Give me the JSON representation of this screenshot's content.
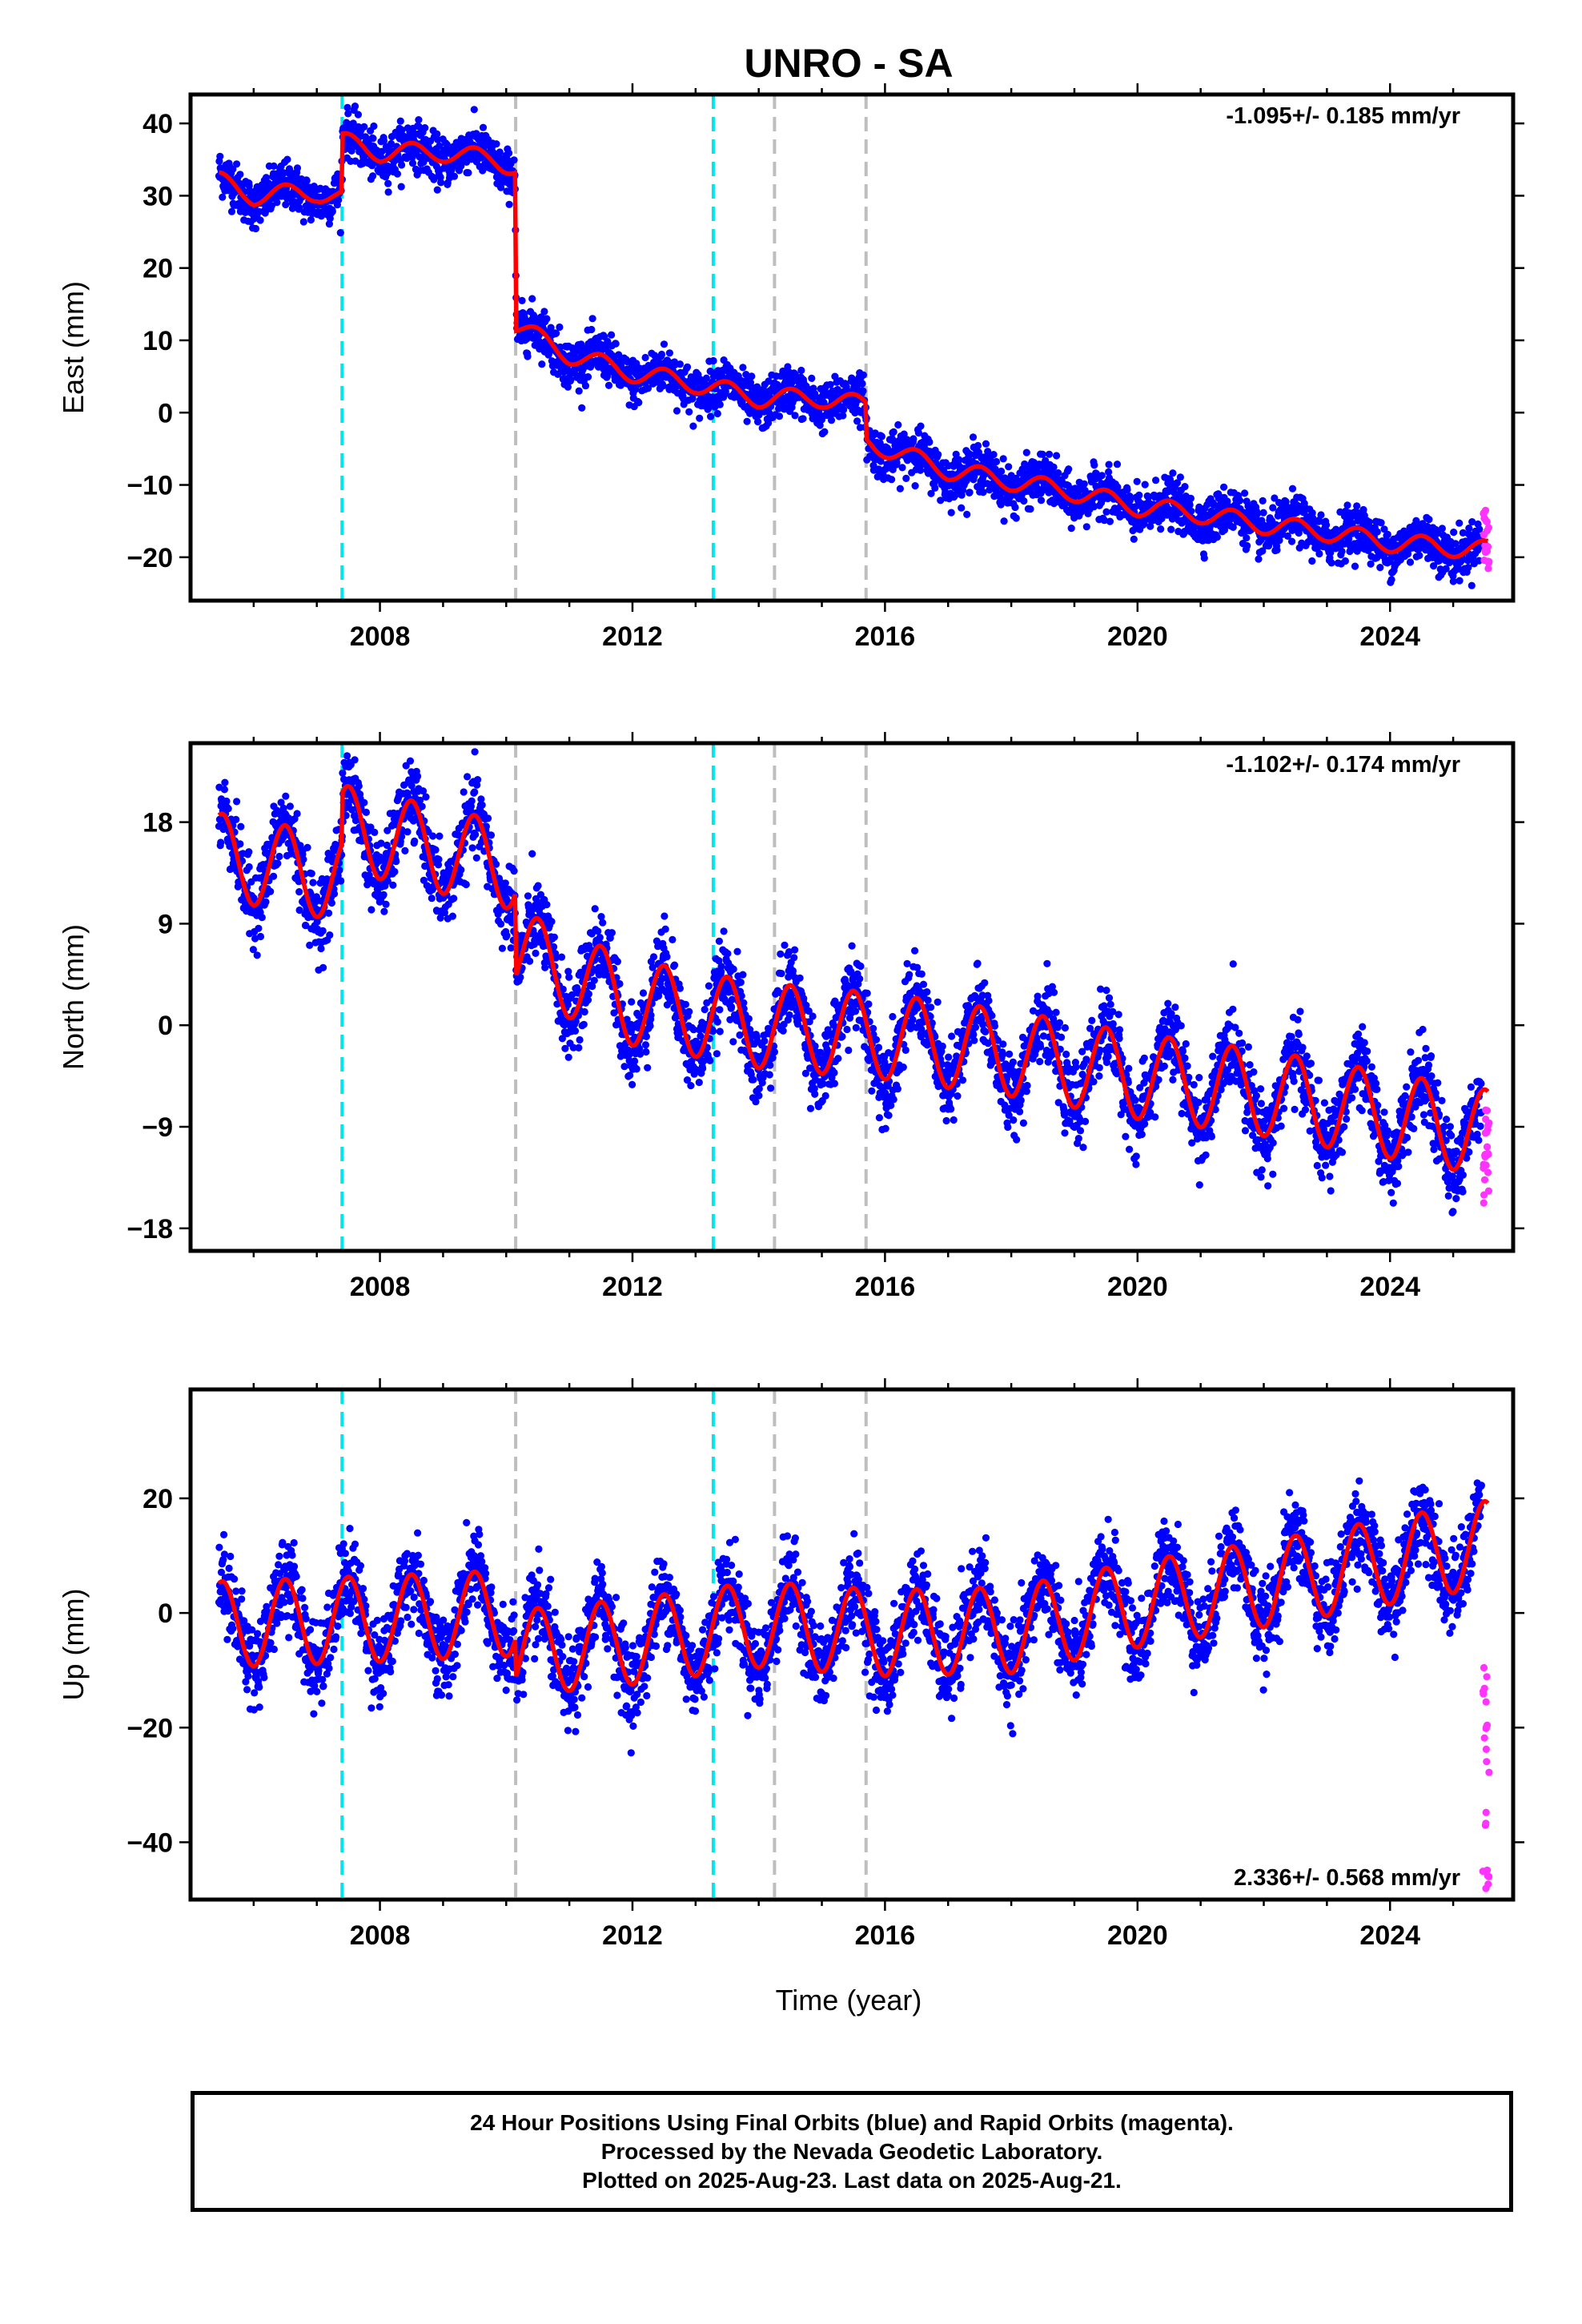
{
  "title": "UNRO - SA",
  "xlabel": "Time (year)",
  "footer": {
    "line1": "24 Hour Positions Using Final Orbits (blue) and Rapid Orbits (magenta).",
    "line2": "Processed by the Nevada Geodetic Laboratory.",
    "line3": "Plotted on 2025-Aug-23. Last data on 2025-Aug-21."
  },
  "colors": {
    "final_orbits": "#0000ff",
    "rapid_orbits": "#ff33ff",
    "model": "#ff0000",
    "cyan_event": "#00e5ee",
    "gray_event": "#bebebe"
  },
  "chart_data": [
    {
      "type": "scatter",
      "panel": "east",
      "ylabel": "East (mm)",
      "rate_label": "-1.095+/- 0.185 mm/yr",
      "xlim": [
        2005.0,
        2025.95
      ],
      "ylim": [
        -26,
        44
      ],
      "x_ticks": [
        2008,
        2012,
        2016,
        2020,
        2024
      ],
      "y_ticks": [
        -20,
        -10,
        0,
        10,
        20,
        30,
        40
      ],
      "event_lines": [
        {
          "x": 2007.4,
          "kind": "cyan"
        },
        {
          "x": 2010.15,
          "kind": "gray"
        },
        {
          "x": 2013.28,
          "kind": "cyan"
        },
        {
          "x": 2014.25,
          "kind": "gray"
        },
        {
          "x": 2015.7,
          "kind": "gray"
        }
      ],
      "model_keyframes": [
        [
          2005.45,
          32.0
        ],
        [
          2006.0,
          30.0
        ],
        [
          2007.0,
          30.5
        ],
        [
          2007.39,
          29.5
        ],
        [
          2007.41,
          37.5
        ],
        [
          2008.0,
          36.0
        ],
        [
          2009.0,
          36.0
        ],
        [
          2009.8,
          35.0
        ],
        [
          2010.14,
          34.0
        ],
        [
          2010.16,
          12.0
        ],
        [
          2011.0,
          8.0
        ],
        [
          2012.0,
          5.5
        ],
        [
          2013.0,
          4.0
        ],
        [
          2014.0,
          2.0
        ],
        [
          2015.0,
          2.0
        ],
        [
          2015.69,
          1.0
        ],
        [
          2015.71,
          -4.0
        ],
        [
          2017.0,
          -8.0
        ],
        [
          2018.0,
          -9.5
        ],
        [
          2019.0,
          -11.0
        ],
        [
          2020.0,
          -13.0
        ],
        [
          2021.0,
          -14.0
        ],
        [
          2022.0,
          -15.5
        ],
        [
          2023.0,
          -16.5
        ],
        [
          2024.0,
          -18.0
        ],
        [
          2025.5,
          -19.0
        ]
      ],
      "seasonal_amplitude": 1.3,
      "scatter_sigma": 1.6,
      "rapid_range": [
        -23,
        -13
      ]
    },
    {
      "type": "scatter",
      "panel": "north",
      "ylabel": "North (mm)",
      "rate_label": "-1.102+/- 0.174 mm/yr",
      "xlim": [
        2005.0,
        2025.95
      ],
      "ylim": [
        -20,
        25
      ],
      "x_ticks": [
        2008,
        2012,
        2016,
        2020,
        2024
      ],
      "y_ticks": [
        -18,
        -9,
        0,
        9,
        18
      ],
      "event_lines": [
        {
          "x": 2007.4,
          "kind": "cyan"
        },
        {
          "x": 2010.15,
          "kind": "gray"
        },
        {
          "x": 2013.28,
          "kind": "cyan"
        },
        {
          "x": 2014.25,
          "kind": "gray"
        },
        {
          "x": 2015.7,
          "kind": "gray"
        }
      ],
      "model_keyframes": [
        [
          2005.45,
          15.0
        ],
        [
          2007.39,
          13.0
        ],
        [
          2007.41,
          17.5
        ],
        [
          2010.14,
          14.0
        ],
        [
          2010.16,
          6.5
        ],
        [
          2012.0,
          2.0
        ],
        [
          2014.0,
          0.0
        ],
        [
          2016.0,
          -1.0
        ],
        [
          2018.0,
          -2.5
        ],
        [
          2020.0,
          -4.5
        ],
        [
          2022.0,
          -6.0
        ],
        [
          2024.0,
          -8.0
        ],
        [
          2025.5,
          -9.5
        ]
      ],
      "seasonal_amplitude": 3.8,
      "scatter_sigma": 1.7,
      "rapid_range": [
        -16,
        -7
      ]
    },
    {
      "type": "scatter",
      "panel": "up",
      "ylabel": "Up (mm)",
      "rate_label": "2.336+/- 0.568 mm/yr",
      "xlim": [
        2005.0,
        2025.95
      ],
      "ylim": [
        -50,
        39
      ],
      "x_ticks": [
        2008,
        2012,
        2016,
        2020,
        2024
      ],
      "y_ticks": [
        -40,
        -20,
        0,
        20
      ],
      "event_lines": [
        {
          "x": 2007.4,
          "kind": "cyan"
        },
        {
          "x": 2010.15,
          "kind": "gray"
        },
        {
          "x": 2013.28,
          "kind": "cyan"
        },
        {
          "x": 2014.25,
          "kind": "gray"
        },
        {
          "x": 2015.7,
          "kind": "gray"
        }
      ],
      "model_keyframes": [
        [
          2005.45,
          -2.0
        ],
        [
          2008.0,
          -1.0
        ],
        [
          2010.14,
          0.0
        ],
        [
          2010.16,
          -7.0
        ],
        [
          2012.0,
          -5.0
        ],
        [
          2014.0,
          -2.0
        ],
        [
          2016.0,
          -3.5
        ],
        [
          2018.0,
          -3.0
        ],
        [
          2020.0,
          1.5
        ],
        [
          2022.0,
          5.0
        ],
        [
          2024.0,
          9.0
        ],
        [
          2025.5,
          12.0
        ]
      ],
      "seasonal_amplitude": 7.5,
      "scatter_sigma": 3.6,
      "rapid_range": [
        -49,
        -8
      ]
    }
  ]
}
